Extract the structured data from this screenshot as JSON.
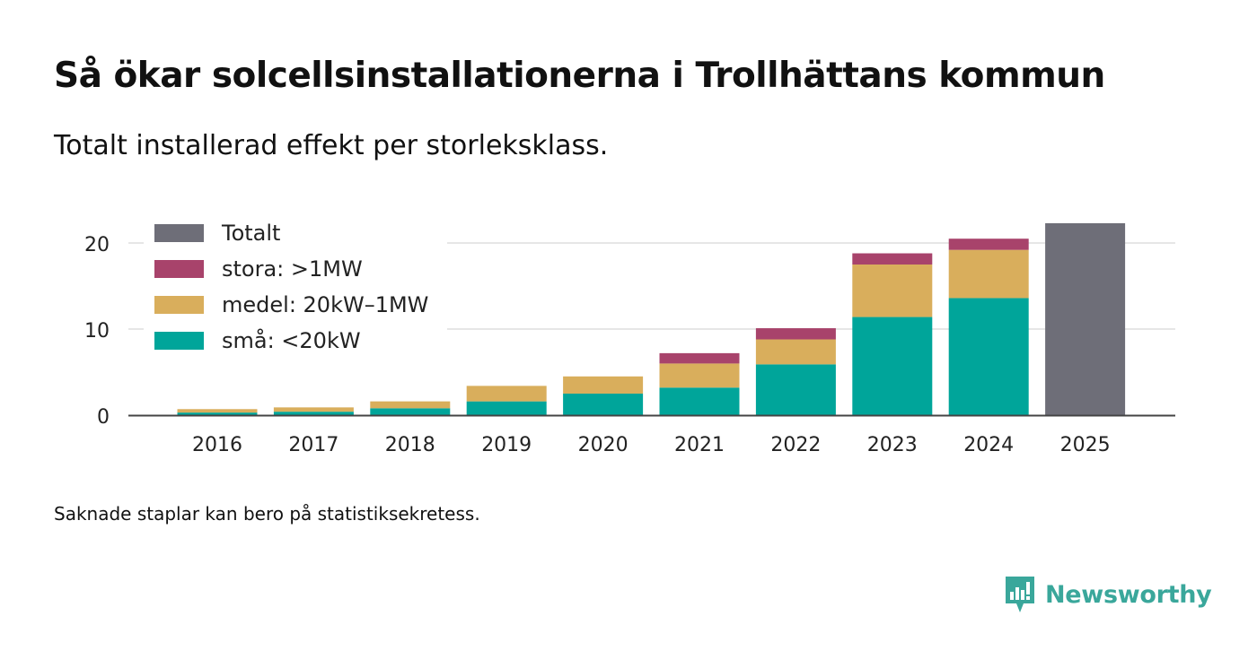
{
  "title": "Så ökar solcellsinstallationerna i Trollhättans kommun",
  "subtitle": "Totalt installerad effekt per storleksklass.",
  "note": "Saknade staplar kan bero på statistiksekretess.",
  "brand": {
    "name": "Newsworthy",
    "icon": "newsworthy-logo-icon",
    "color": "#3aa79b"
  },
  "chart_data": {
    "type": "bar",
    "stacked": true,
    "title": "Så ökar solcellsinstallationerna i Trollhättans kommun",
    "subtitle": "Totalt installerad effekt per storleksklass.",
    "xlabel": "",
    "ylabel": "",
    "ylim": [
      0,
      22
    ],
    "yticks": [
      0,
      10,
      20
    ],
    "grid": true,
    "legend_position": "top-left",
    "categories": [
      "2016",
      "2017",
      "2018",
      "2019",
      "2020",
      "2021",
      "2022",
      "2023",
      "2024",
      "2025"
    ],
    "series": [
      {
        "name": "små: <20kW",
        "color": "#00a59a",
        "values": [
          0.3,
          0.4,
          0.8,
          1.6,
          2.5,
          3.2,
          5.9,
          11.4,
          13.6,
          null
        ]
      },
      {
        "name": "medel: 20kW–1MW",
        "color": "#d9ae5c",
        "values": [
          0.4,
          0.5,
          0.8,
          1.8,
          2.0,
          2.8,
          2.9,
          6.1,
          5.6,
          null
        ]
      },
      {
        "name": "stora: >1MW",
        "color": "#a8436b",
        "values": [
          0,
          0,
          0,
          0,
          0,
          1.2,
          1.3,
          1.3,
          1.3,
          null
        ]
      },
      {
        "name": "Totalt",
        "color": "#6e6e78",
        "values": [
          null,
          null,
          null,
          null,
          null,
          null,
          null,
          null,
          null,
          22.3
        ]
      }
    ],
    "legend_order": [
      "Totalt",
      "stora: >1MW",
      "medel: 20kW–1MW",
      "små: <20kW"
    ]
  }
}
